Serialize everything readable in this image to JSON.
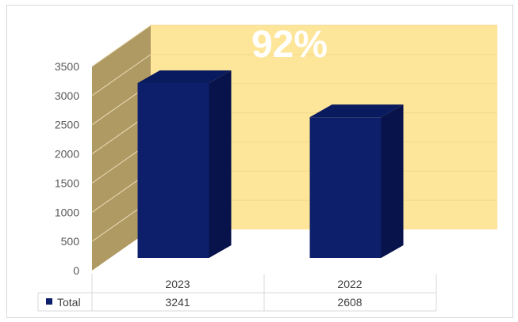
{
  "chart_data": {
    "type": "bar",
    "title": "92%",
    "categories": [
      "2023",
      "2022"
    ],
    "series": [
      {
        "name": "Total",
        "values": [
          3241,
          2608
        ]
      }
    ],
    "ylim": [
      0,
      3500
    ],
    "y_ticks": [
      "0",
      "500",
      "1000",
      "1500",
      "2000",
      "2500",
      "3000",
      "3500"
    ],
    "table": {
      "row_label": "Total",
      "values": [
        "3241",
        "2608"
      ]
    },
    "grid": true,
    "three_d": true,
    "colors": {
      "bar_front": "#0d1f6b",
      "bar_top": "#0a1a5e",
      "bar_side": "#07134a",
      "back_wall": "#fde59a",
      "side_wall": "#b09a63",
      "floor": "#ffffff"
    }
  }
}
